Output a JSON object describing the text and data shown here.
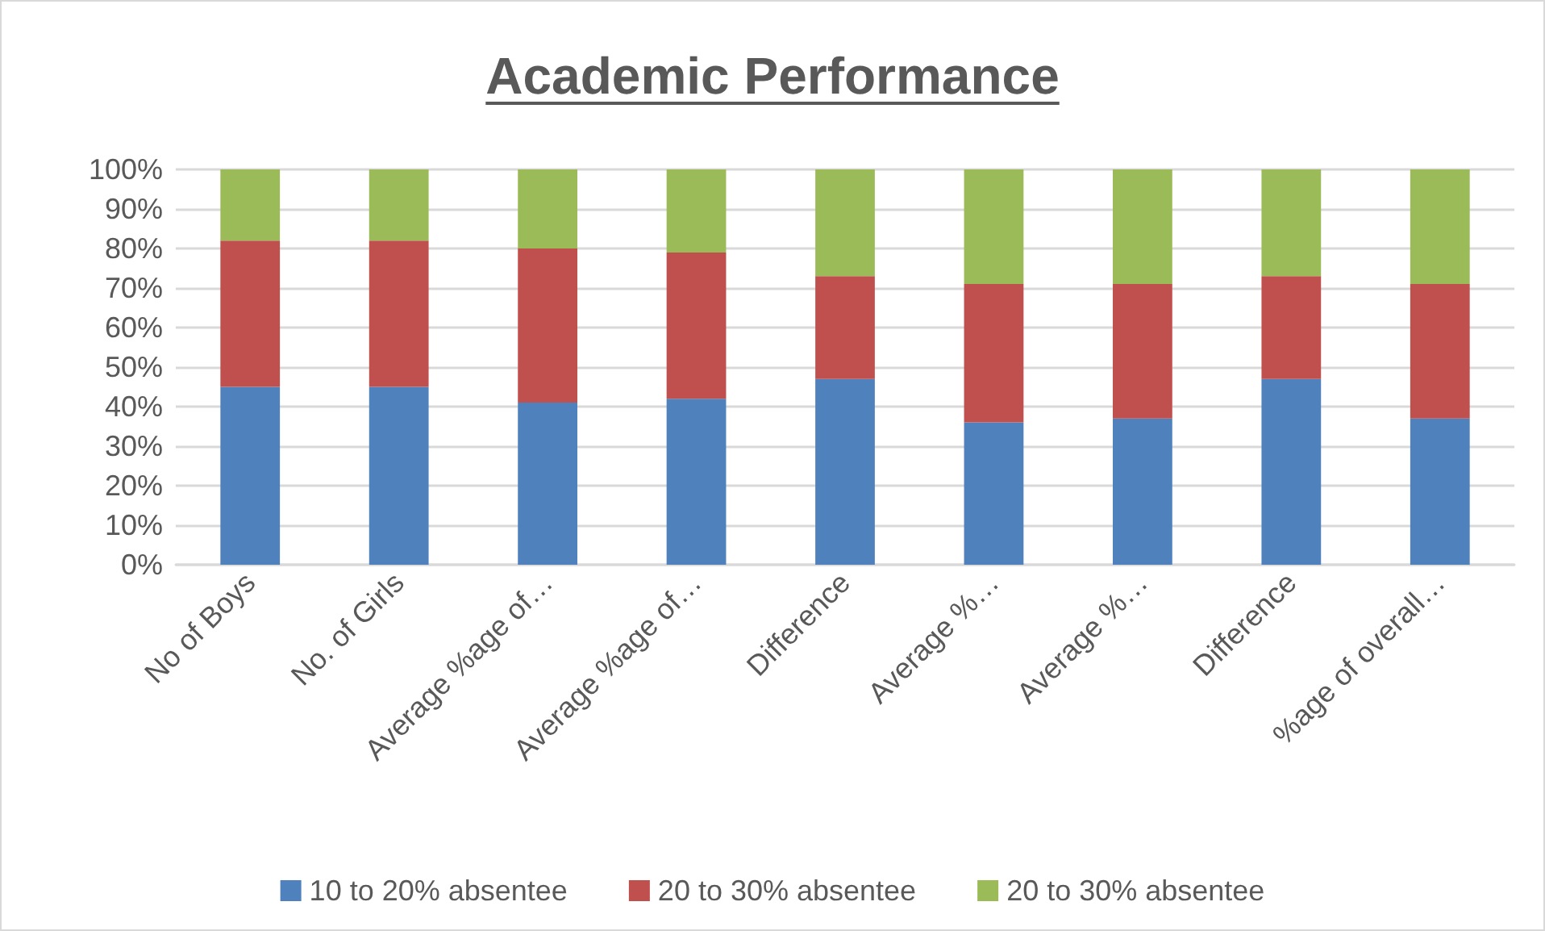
{
  "chart_data": {
    "type": "bar",
    "stacked": true,
    "title": "Academic Performance",
    "categories": [
      "No of Boys",
      "No. of Girls",
      "Average %age of…",
      "Average %age of…",
      "Difference",
      "Average %…",
      "Average %…",
      "Difference",
      "%age of overall…"
    ],
    "series": [
      {
        "name": "10 to 20% absentee",
        "color": "#4f81bd",
        "values": [
          45,
          45,
          41,
          42,
          47,
          36,
          37,
          47,
          37
        ]
      },
      {
        "name": "20 to 30% absentee",
        "color": "#c0504d",
        "values": [
          37,
          37,
          39,
          37,
          26,
          35,
          34,
          26,
          34
        ]
      },
      {
        "name": "20 to 30% absentee",
        "color": "#9bbb59",
        "values": [
          18,
          18,
          20,
          21,
          27,
          29,
          29,
          27,
          29
        ]
      }
    ],
    "ylim": [
      0,
      100
    ],
    "yticks": [
      {
        "value": 0,
        "label": "0%"
      },
      {
        "value": 10,
        "label": "10%"
      },
      {
        "value": 20,
        "label": "20%"
      },
      {
        "value": 30,
        "label": "30%"
      },
      {
        "value": 40,
        "label": "40%"
      },
      {
        "value": 50,
        "label": "50%"
      },
      {
        "value": 60,
        "label": "60%"
      },
      {
        "value": 70,
        "label": "70%"
      },
      {
        "value": 80,
        "label": "80%"
      },
      {
        "value": 90,
        "label": "90%"
      },
      {
        "value": 100,
        "label": "100%"
      }
    ],
    "grid": "y",
    "legend": "bottom"
  }
}
